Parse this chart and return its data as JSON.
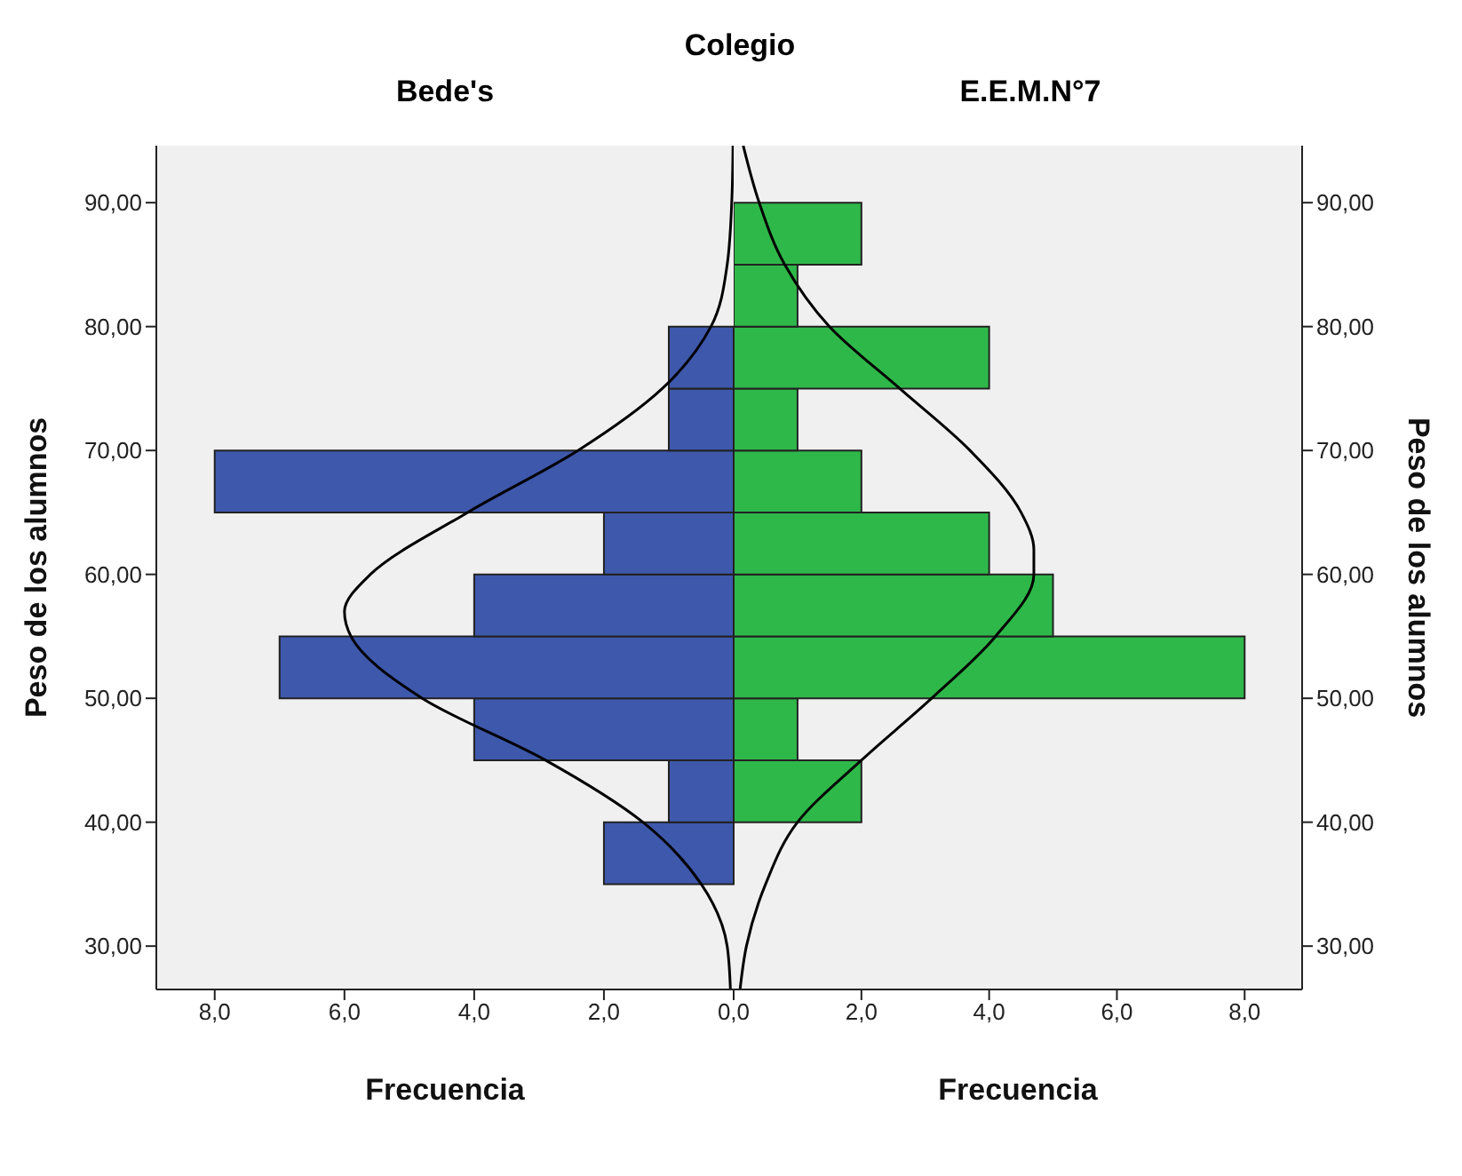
{
  "chart_data": [
    {
      "type": "histogram",
      "orientation": "horizontal",
      "title": "Colegio",
      "subtitle": "Bede's",
      "xlabel": "Frecuencia",
      "ylabel": "Peso de los alumnos",
      "xlim": [
        8.9,
        0
      ],
      "xticks": [
        {
          "value": 8,
          "label": "8,0"
        },
        {
          "value": 6,
          "label": "6,0"
        },
        {
          "value": 4,
          "label": "4,0"
        },
        {
          "value": 2,
          "label": "2,0"
        },
        {
          "value": 0,
          "label": "0,0"
        }
      ],
      "ylim": [
        26.5,
        94.6
      ],
      "yticks": [
        {
          "value": 30,
          "label": "30,00"
        },
        {
          "value": 40,
          "label": "40,00"
        },
        {
          "value": 50,
          "label": "50,00"
        },
        {
          "value": 60,
          "label": "60,00"
        },
        {
          "value": 70,
          "label": "70,00"
        },
        {
          "value": 80,
          "label": "80,00"
        },
        {
          "value": 90,
          "label": "90,00"
        }
      ],
      "legend": false,
      "series": [
        {
          "type": "histogram",
          "color": "#3e58ac",
          "bins": [
            35,
            40,
            45,
            50,
            55,
            60,
            65,
            70,
            75,
            80
          ],
          "values": [
            2,
            1,
            4,
            7,
            4,
            2,
            8,
            1,
            1
          ]
        },
        {
          "type": "line",
          "color": "#000000",
          "x": [
            26.5,
            30,
            35,
            40,
            45,
            50,
            55,
            57,
            60,
            65,
            70,
            75,
            80,
            85,
            90,
            94.6
          ],
          "values": [
            0.05,
            0.1,
            0.5,
            1.4,
            2.9,
            4.8,
            5.9,
            6.0,
            5.6,
            4.1,
            2.4,
            1.1,
            0.35,
            0.1,
            0.03,
            0.01
          ]
        }
      ]
    },
    {
      "type": "histogram",
      "orientation": "horizontal",
      "subtitle": "E.E.M.N°7",
      "xlabel": "Frecuencia",
      "ylabel": "Peso de los alumnos",
      "xlim": [
        0,
        8.9
      ],
      "xticks": [
        {
          "value": 0,
          "label": null
        },
        {
          "value": 2,
          "label": "2,0"
        },
        {
          "value": 4,
          "label": "4,0"
        },
        {
          "value": 6,
          "label": "6,0"
        },
        {
          "value": 8,
          "label": "8,0"
        }
      ],
      "ylim": [
        26.5,
        94.6
      ],
      "yticks": [
        {
          "value": 30,
          "label": "30,00"
        },
        {
          "value": 40,
          "label": "40,00"
        },
        {
          "value": 50,
          "label": "50,00"
        },
        {
          "value": 60,
          "label": "60,00"
        },
        {
          "value": 70,
          "label": "70,00"
        },
        {
          "value": 80,
          "label": "80,00"
        },
        {
          "value": 90,
          "label": "90,00"
        }
      ],
      "legend": false,
      "series": [
        {
          "type": "histogram",
          "color": "#2fb84a",
          "bins": [
            40,
            45,
            50,
            55,
            60,
            65,
            70,
            75,
            80,
            85,
            90
          ],
          "values": [
            2,
            1,
            8,
            5,
            4,
            2,
            1,
            4,
            1,
            2
          ]
        },
        {
          "type": "line",
          "color": "#000000",
          "x": [
            26.5,
            30,
            35,
            40,
            45,
            50,
            55,
            60,
            62,
            65,
            70,
            75,
            80,
            85,
            90,
            94.6
          ],
          "values": [
            0.1,
            0.2,
            0.5,
            1.0,
            2.0,
            3.1,
            4.1,
            4.7,
            4.7,
            4.5,
            3.7,
            2.6,
            1.5,
            0.8,
            0.4,
            0.15
          ]
        }
      ]
    }
  ]
}
